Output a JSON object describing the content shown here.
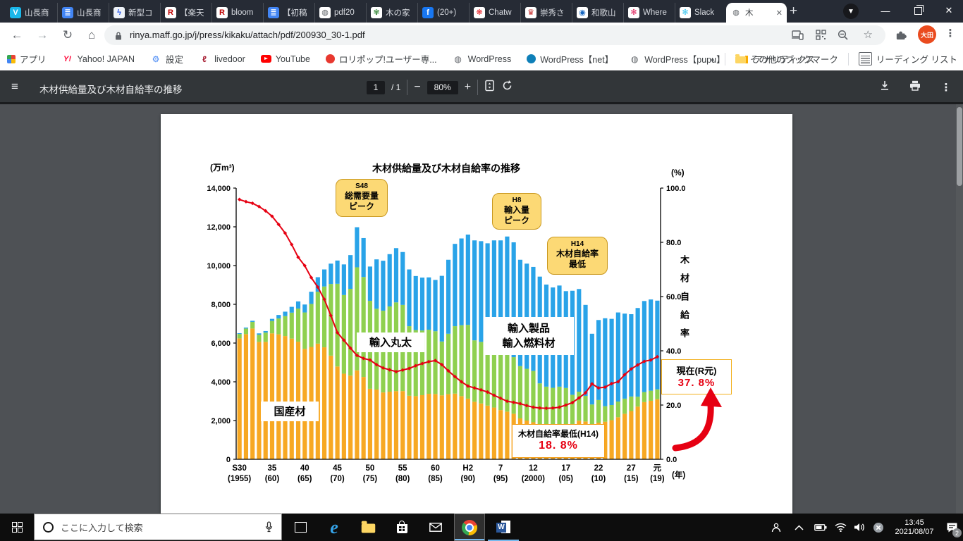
{
  "browser": {
    "tabs": [
      {
        "label": "山長商",
        "icon": "vimeo",
        "glyph": "V",
        "bg": "#1AB7EA",
        "fg": "#fff"
      },
      {
        "label": "山長商",
        "icon": "document",
        "glyph": "≣",
        "bg": "#4285F4",
        "fg": "#fff"
      },
      {
        "label": "新型コ",
        "icon": "site",
        "glyph": "ϟ",
        "bg": "#EEF2F8",
        "fg": "#2F5BEA"
      },
      {
        "label": "【楽天",
        "icon": "rakuten",
        "glyph": "R",
        "bg": "#fff",
        "fg": "#BF0000"
      },
      {
        "label": "bloom",
        "icon": "rakuten",
        "glyph": "R",
        "bg": "#fff",
        "fg": "#BF0000"
      },
      {
        "label": "【初稿",
        "icon": "document",
        "glyph": "≣",
        "bg": "#4285F4",
        "fg": "#fff"
      },
      {
        "label": "pdf20",
        "icon": "globe",
        "glyph": "◍",
        "bg": "#fff",
        "fg": "#5F6368"
      },
      {
        "label": "木の家",
        "icon": "leaf",
        "glyph": "✾",
        "bg": "#fff",
        "fg": "#3C8C3F"
      },
      {
        "label": "(20+)",
        "icon": "facebook",
        "glyph": "f",
        "bg": "#1877F2",
        "fg": "#fff"
      },
      {
        "label": "Chatw",
        "icon": "chatwork",
        "glyph": "❋",
        "bg": "#fff",
        "fg": "#E8232A"
      },
      {
        "label": "崇秀さ",
        "icon": "site",
        "glyph": "♛",
        "bg": "#fff",
        "fg": "#C62828"
      },
      {
        "label": "和歌山",
        "icon": "map-pin",
        "glyph": "◉",
        "bg": "#fff",
        "fg": "#1565C0"
      },
      {
        "label": "Where",
        "icon": "slack",
        "glyph": "✻",
        "bg": "#fff",
        "fg": "#E01E5A"
      },
      {
        "label": "Slack",
        "icon": "slack",
        "glyph": "✻",
        "bg": "#fff",
        "fg": "#36C5F0"
      },
      {
        "label": "木",
        "icon": "globe",
        "glyph": "◍",
        "bg": "#fff",
        "fg": "#5F6368",
        "active": true
      }
    ],
    "new_tab_glyph": "+",
    "address": {
      "url": "rinya.maff.go.jp/j/press/kikaku/attach/pdf/200930_30-1.pdf"
    },
    "avatar_initials": "大田"
  },
  "bookmarks": {
    "items": [
      {
        "label": "アプリ",
        "icon": "apps-grid",
        "kind": "grid"
      },
      {
        "label": "Yahoo! JAPAN",
        "icon": "yahoo",
        "kind": "letter",
        "glyph": "Y!",
        "fg": "#FF0033"
      },
      {
        "label": "設定",
        "icon": "gear",
        "kind": "letter",
        "glyph": "⚙",
        "fg": "#4285F4"
      },
      {
        "label": "livedoor",
        "icon": "livedoor",
        "kind": "letter",
        "glyph": "ℓ",
        "fg": "#A6192E"
      },
      {
        "label": "YouTube",
        "icon": "youtube",
        "kind": "play"
      },
      {
        "label": "ロリポップ!ユーザー専...",
        "icon": "lolipop",
        "kind": "dot",
        "fg": "#E8382F"
      },
      {
        "label": "WordPress",
        "icon": "wordpress",
        "kind": "letter",
        "glyph": "◍",
        "fg": "#5F6368"
      },
      {
        "label": "WordPress【net】",
        "icon": "wordpress-net",
        "kind": "dot",
        "fg": "#0E7FB8"
      },
      {
        "label": "WordPress【pupu】",
        "icon": "wordpress-pupu",
        "kind": "letter",
        "glyph": "◍",
        "fg": "#5F6368"
      },
      {
        "label": "アナリティクス",
        "icon": "analytics",
        "kind": "bars"
      }
    ],
    "overflow_chevron": "»",
    "other_bookmarks": "その他のブックマーク",
    "reading_list": "リーディング リスト"
  },
  "pdf_toolbar": {
    "title": "木材供給量及び木材自給率の推移",
    "page_current": "1",
    "page_total": "/ 1",
    "zoom_level": "80%"
  },
  "taskbar": {
    "search_placeholder": "ここに入力して検索",
    "time": "13:45",
    "date": "2021/08/07",
    "notification_count": "2"
  },
  "chart_data": {
    "type": "bar",
    "stacked": true,
    "title": "木材供給量及び木材自給率の推移",
    "unit_left": "(万m³)",
    "unit_right": "(%)",
    "right_axis_title": "木材自給率",
    "x_axis_suffix": "(年)",
    "ylim_left": [
      0,
      14000
    ],
    "ylim_right": [
      0,
      100
    ],
    "grid": false,
    "years": [
      1955,
      1956,
      1957,
      1958,
      1959,
      1960,
      1961,
      1962,
      1963,
      1964,
      1965,
      1966,
      1967,
      1968,
      1969,
      1970,
      1971,
      1972,
      1973,
      1974,
      1975,
      1976,
      1977,
      1978,
      1979,
      1980,
      1981,
      1982,
      1983,
      1984,
      1985,
      1986,
      1987,
      1988,
      1989,
      1990,
      1991,
      1992,
      1993,
      1994,
      1995,
      1996,
      1997,
      1998,
      1999,
      2000,
      2001,
      2002,
      2003,
      2004,
      2005,
      2006,
      2007,
      2008,
      2009,
      2010,
      2011,
      2012,
      2013,
      2014,
      2015,
      2016,
      2017,
      2018,
      2019
    ],
    "x_ticks": [
      [
        0,
        "S30",
        "(1955)"
      ],
      [
        5,
        "35",
        "(60)"
      ],
      [
        10,
        "40",
        "(65)"
      ],
      [
        15,
        "45",
        "(70)"
      ],
      [
        20,
        "50",
        "(75)"
      ],
      [
        25,
        "55",
        "(80)"
      ],
      [
        30,
        "60",
        "(85)"
      ],
      [
        35,
        "H2",
        "(90)"
      ],
      [
        40,
        "7",
        "(95)"
      ],
      [
        45,
        "12",
        "(2000)"
      ],
      [
        50,
        "17",
        "(05)"
      ],
      [
        55,
        "22",
        "(10)"
      ],
      [
        60,
        "27",
        "(15)"
      ],
      [
        64,
        "元",
        "(19)"
      ]
    ],
    "series": [
      {
        "name": "国産材",
        "color": "#F7A823",
        "values": [
          6240,
          6460,
          6750,
          6060,
          6060,
          6500,
          6450,
          6360,
          6230,
          6070,
          5700,
          5800,
          5970,
          5780,
          5350,
          4790,
          4420,
          4320,
          4590,
          4250,
          3640,
          3600,
          3450,
          3490,
          3520,
          3520,
          3280,
          3260,
          3310,
          3380,
          3370,
          3300,
          3360,
          3390,
          3260,
          3130,
          2970,
          2880,
          2770,
          2670,
          2540,
          2460,
          2350,
          2110,
          2000,
          1910,
          1780,
          1700,
          1680,
          1720,
          1740,
          1820,
          1990,
          1950,
          1800,
          1890,
          1940,
          2020,
          2170,
          2350,
          2490,
          2720,
          2950,
          3020,
          3100
        ]
      },
      {
        "name": "輸入丸太",
        "color": "#8FD04F",
        "values": [
          230,
          290,
          340,
          370,
          480,
          640,
          820,
          1030,
          1340,
          1710,
          1880,
          2220,
          2680,
          3140,
          3700,
          4270,
          4060,
          4480,
          5320,
          5160,
          4540,
          4170,
          4220,
          4400,
          4580,
          4450,
          3590,
          3410,
          3340,
          3310,
          3240,
          2780,
          3120,
          3480,
          3660,
          3810,
          3170,
          3180,
          3180,
          3280,
          3330,
          2980,
          2920,
          2700,
          2670,
          2650,
          2140,
          2050,
          2010,
          2030,
          1940,
          1510,
          1500,
          1320,
          1030,
          1170,
          800,
          780,
          810,
          780,
          750,
          510,
          520,
          520,
          510
        ]
      },
      {
        "name": "輸入製品・輸入燃料材",
        "color": "#29A3E8",
        "values": [
          40,
          50,
          60,
          70,
          80,
          110,
          180,
          230,
          300,
          370,
          410,
          630,
          750,
          880,
          1050,
          1200,
          1580,
          1740,
          2070,
          2010,
          1770,
          2550,
          2580,
          2700,
          2800,
          2730,
          2930,
          2790,
          2730,
          2700,
          2650,
          3390,
          3820,
          4250,
          4480,
          4660,
          5160,
          5200,
          5200,
          5350,
          5430,
          6060,
          5930,
          5490,
          5430,
          5370,
          5510,
          5270,
          5180,
          5220,
          5000,
          5370,
          5300,
          4700,
          3650,
          4130,
          4540,
          4450,
          4600,
          4390,
          4250,
          4580,
          4700,
          4710,
          4580
        ]
      }
    ],
    "line_series": {
      "name": "木材自給率",
      "color": "#E60012",
      "axis": "right",
      "values": [
        95.8,
        95.0,
        94.4,
        93.2,
        91.6,
        89.6,
        86.6,
        83.4,
        79.2,
        74.5,
        71.4,
        67.0,
        63.5,
        59.0,
        53.0,
        46.7,
        43.9,
        41.0,
        38.3,
        37.2,
        36.6,
        34.9,
        33.7,
        33.0,
        32.3,
        32.9,
        33.5,
        34.5,
        35.3,
        36.0,
        36.4,
        34.9,
        32.6,
        30.5,
        28.6,
        27.0,
        26.3,
        25.6,
        24.8,
        23.6,
        22.5,
        21.4,
        21.0,
        20.5,
        19.8,
        19.2,
        18.9,
        18.8,
        18.9,
        19.2,
        20.0,
        20.9,
        22.6,
        24.5,
        27.8,
        26.3,
        26.6,
        27.9,
        28.6,
        31.2,
        33.3,
        34.8,
        36.1,
        36.6,
        37.8
      ]
    },
    "labels": {
      "peak_s48_era": "S48",
      "peak_s48_1": "総需要量",
      "peak_s48_2": "ピーク",
      "peak_h8_era": "H8",
      "peak_h8_1": "輸入量",
      "peak_h8_2": "ピーク",
      "low_h14_era": "H14",
      "low_h14_1": "木材自給率",
      "low_h14_2": "最低",
      "domestic": "国産材",
      "logs": "輸入丸太",
      "products_1": "輸入製品",
      "products_2": "輸入燃料材",
      "lowest_title": "木材自給率最低(H14)",
      "lowest_value": "18. 8%",
      "current_title": "現在(R元)",
      "current_value": "37. 8%"
    }
  }
}
